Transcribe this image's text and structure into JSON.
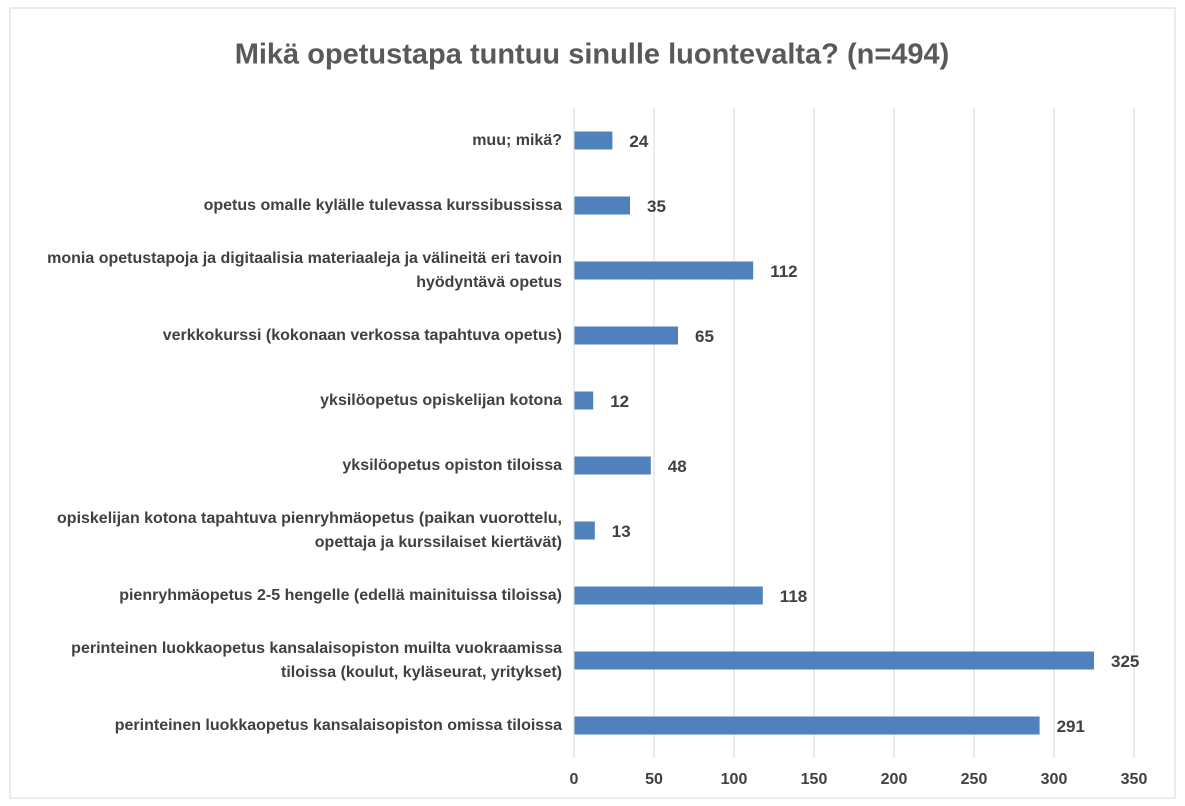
{
  "chart_data": {
    "type": "barh",
    "title": "Mikä opetustapa tuntuu sinulle luontevalta? (n=494)",
    "categories": [
      "muu; mikä?",
      "opetus omalle kylälle tulevassa kurssibussissa",
      "monia opetustapoja ja digitaalisia materiaaleja ja välineitä eri tavoin hyödyntävä opetus",
      "verkkokurssi (kokonaan verkossa tapahtuva opetus)",
      "yksilöopetus opiskelijan kotona",
      "yksilöopetus opiston tiloissa",
      "opiskelijan kotona tapahtuva pienryhmäopetus (paikan vuorottelu, opettaja ja kurssilaiset kiertävät)",
      "pienryhmäopetus 2-5 hengelle (edellä mainituissa tiloissa)",
      "perinteinen luokkaopetus kansalaisopiston muilta vuokraamissa tiloissa (koulut, kyläseurat, yritykset)",
      "perinteinen luokkaopetus kansalaisopiston omissa tiloissa"
    ],
    "values": [
      24,
      35,
      112,
      65,
      12,
      48,
      13,
      118,
      325,
      291
    ],
    "color": "#4f81bd",
    "xlim": [
      0,
      350
    ],
    "xticks": [
      0,
      50,
      100,
      150,
      200,
      250,
      300,
      350
    ],
    "grid": true
  }
}
